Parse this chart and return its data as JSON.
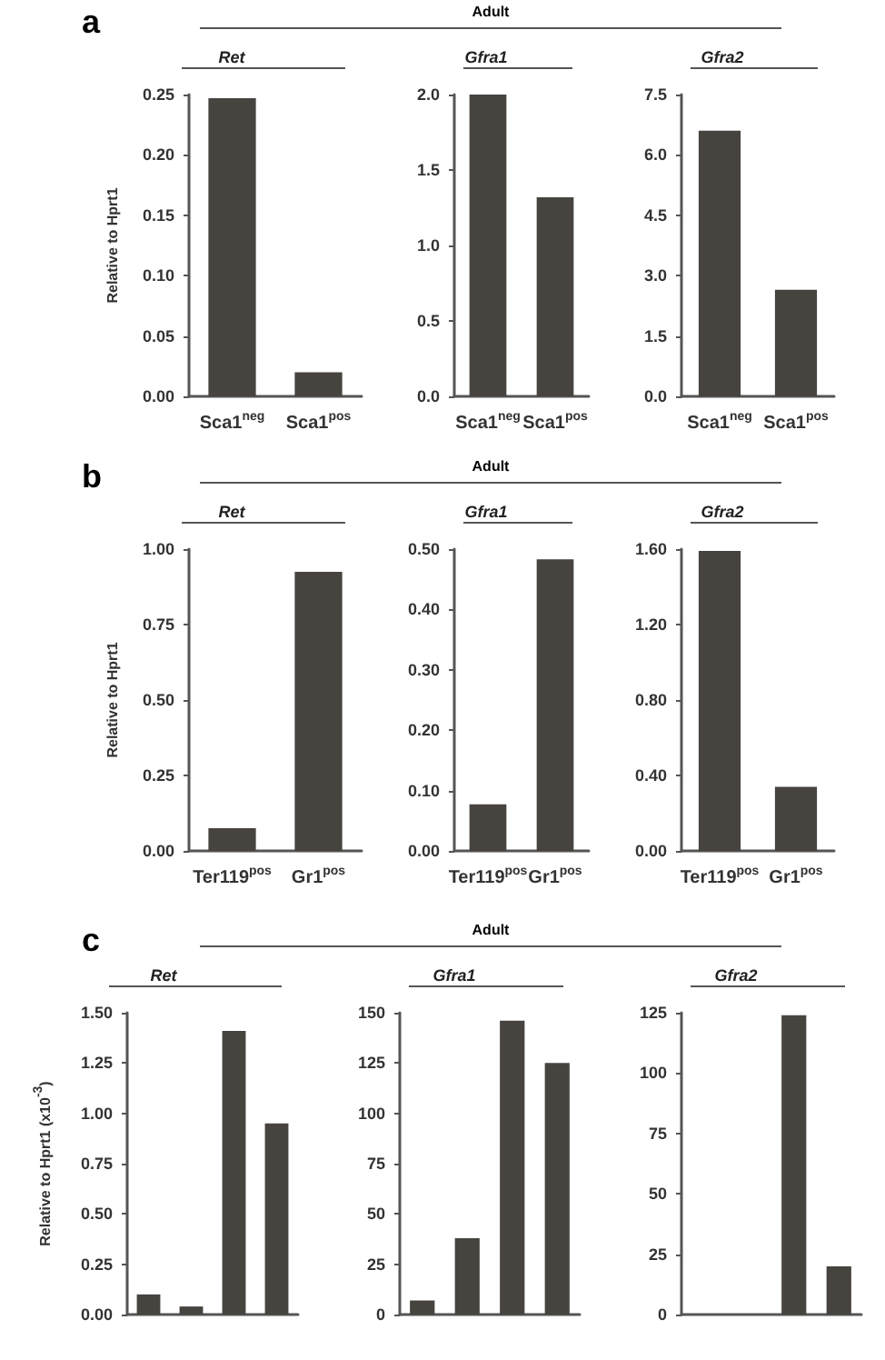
{
  "chart_data": [
    {
      "type": "bar",
      "title": "Ret",
      "ylabel": "Relative to Hprt1",
      "annotations": [
        "a",
        "Adult"
      ],
      "categories": [
        "Sca1$^{neg}$",
        "Sca1$^{pos}$"
      ],
      "values": [
        0.247,
        0.02
      ],
      "color": "#474440",
      "ylim": [
        0,
        0.25
      ],
      "yticks": [
        {
          "value": 0,
          "label": "0.00"
        },
        {
          "value": 0.05,
          "label": "0.05"
        },
        {
          "value": 0.1,
          "label": "0.10"
        },
        {
          "value": 0.15,
          "label": "0.15"
        },
        {
          "value": 0.2,
          "label": "0.20"
        },
        {
          "value": 0.25,
          "label": "0.25"
        }
      ],
      "grid": false
    },
    {
      "type": "bar",
      "title": "Gfra1",
      "categories": [
        "Sca1$^{neg}$",
        "Sca1$^{pos}$"
      ],
      "values": [
        2.0,
        1.32
      ],
      "color": "#474440",
      "ylim": [
        0,
        2
      ],
      "yticks": [
        {
          "value": 0,
          "label": "0.0"
        },
        {
          "value": 0.5,
          "label": "0.5"
        },
        {
          "value": 1,
          "label": "1.0"
        },
        {
          "value": 1.5,
          "label": "1.5"
        },
        {
          "value": 2,
          "label": "2.0"
        }
      ],
      "grid": false
    },
    {
      "type": "bar",
      "title": "Gfra2",
      "categories": [
        "Sca1$^{neg}$",
        "Sca1$^{pos}$"
      ],
      "values": [
        6.6,
        2.65
      ],
      "color": "#474440",
      "ylim": [
        0,
        7.5
      ],
      "yticks": [
        {
          "value": 0,
          "label": "0.0"
        },
        {
          "value": 1.5,
          "label": "1.5"
        },
        {
          "value": 3,
          "label": "3.0"
        },
        {
          "value": 4.5,
          "label": "4.5"
        },
        {
          "value": 6,
          "label": "6.0"
        },
        {
          "value": 7.5,
          "label": "7.5"
        }
      ],
      "grid": false
    },
    {
      "type": "bar",
      "title": "Ret",
      "ylabel": "Relative to Hprt1",
      "annotations": [
        "b",
        "Adult"
      ],
      "categories": [
        "Ter119$^{pos}$",
        "Gr1$^{pos}$"
      ],
      "values": [
        0.075,
        0.925
      ],
      "color": "#474440",
      "ylim": [
        0,
        1
      ],
      "yticks": [
        {
          "value": 0,
          "label": "0.00"
        },
        {
          "value": 0.25,
          "label": "0.25"
        },
        {
          "value": 0.5,
          "label": "0.50"
        },
        {
          "value": 0.75,
          "label": "0.75"
        },
        {
          "value": 1,
          "label": "1.00"
        }
      ],
      "grid": false
    },
    {
      "type": "bar",
      "title": "Gfra1",
      "categories": [
        "Ter119$^{pos}$",
        "Gr1$^{pos}$"
      ],
      "values": [
        0.077,
        0.483
      ],
      "color": "#474440",
      "ylim": [
        0,
        0.5
      ],
      "yticks": [
        {
          "value": 0,
          "label": "0.00"
        },
        {
          "value": 0.1,
          "label": "0.10"
        },
        {
          "value": 0.2,
          "label": "0.20"
        },
        {
          "value": 0.3,
          "label": "0.30"
        },
        {
          "value": 0.4,
          "label": "0.40"
        },
        {
          "value": 0.5,
          "label": "0.50"
        }
      ],
      "grid": false
    },
    {
      "type": "bar",
      "title": "Gfra2",
      "categories": [
        "Ter119$^{pos}$",
        "Gr1$^{pos}$"
      ],
      "values": [
        1.59,
        0.34
      ],
      "color": "#474440",
      "ylim": [
        0,
        1.6
      ],
      "yticks": [
        {
          "value": 0,
          "label": "0.00"
        },
        {
          "value": 0.4,
          "label": "0.40"
        },
        {
          "value": 0.8,
          "label": "0.80"
        },
        {
          "value": 1.2,
          "label": "1.20"
        },
        {
          "value": 1.6,
          "label": "1.60"
        }
      ],
      "grid": false
    },
    {
      "type": "bar",
      "title": "Ret",
      "ylabel": "Relative to Hprt1 (x10$^{-3}$)",
      "annotations": [
        "c",
        "Adult"
      ],
      "categories": [
        null,
        null,
        null,
        null
      ],
      "values": [
        0.1,
        0.04,
        1.41,
        0.95
      ],
      "color": "#474440",
      "ylim": [
        0,
        1.5
      ],
      "yticks": [
        {
          "value": 0,
          "label": "0.00"
        },
        {
          "value": 0.25,
          "label": "0.25"
        },
        {
          "value": 0.5,
          "label": "0.50"
        },
        {
          "value": 0.75,
          "label": "0.75"
        },
        {
          "value": 1,
          "label": "1.00"
        },
        {
          "value": 1.25,
          "label": "1.25"
        },
        {
          "value": 1.5,
          "label": "1.50"
        }
      ],
      "grid": false
    },
    {
      "type": "bar",
      "title": "Gfra1",
      "categories": [
        null,
        null,
        null,
        null
      ],
      "values": [
        7,
        38,
        146,
        125
      ],
      "color": "#474440",
      "ylim": [
        0,
        150
      ],
      "yticks": [
        0,
        25,
        50,
        75,
        100,
        125,
        150
      ],
      "grid": false
    },
    {
      "type": "bar",
      "title": "Gfra2",
      "categories": [
        null,
        null,
        null,
        null
      ],
      "values": [
        0,
        0,
        124,
        20
      ],
      "color": "#474440",
      "ylim": [
        0,
        125
      ],
      "yticks": [
        0,
        25,
        50,
        75,
        100,
        125
      ],
      "grid": false
    }
  ]
}
